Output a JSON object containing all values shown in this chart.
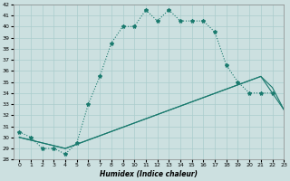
{
  "xlabel": "Humidex (Indice chaleur)",
  "bg_color": "#cce0e0",
  "grid_color": "#aacccc",
  "line_color": "#1a7a6e",
  "ylim": [
    28,
    42
  ],
  "xlim": [
    -0.5,
    23
  ],
  "yticks": [
    28,
    29,
    30,
    31,
    32,
    33,
    34,
    35,
    36,
    37,
    38,
    39,
    40,
    41,
    42
  ],
  "xticks": [
    0,
    1,
    2,
    3,
    4,
    5,
    6,
    7,
    8,
    9,
    10,
    11,
    12,
    13,
    14,
    15,
    16,
    17,
    18,
    19,
    20,
    21,
    22,
    23
  ],
  "line1_x": [
    0,
    1,
    2,
    3,
    4,
    5,
    6,
    7,
    8,
    9,
    10,
    11,
    12,
    13,
    14,
    15,
    16,
    17,
    18,
    19,
    20,
    21,
    22
  ],
  "line1_y": [
    30.5,
    30.0,
    29.0,
    29.0,
    28.5,
    29.5,
    33.0,
    35.5,
    38.5,
    40.0,
    40.0,
    41.5,
    40.5,
    41.5,
    40.5,
    40.5,
    40.5,
    39.5,
    36.5,
    35.0,
    34.0,
    34.0,
    34.0
  ],
  "line2_x": [
    0,
    4,
    21,
    22,
    23
  ],
  "line2_y": [
    30.0,
    29.0,
    35.5,
    34.5,
    32.5
  ],
  "line3_x": [
    0,
    4,
    21,
    22,
    23
  ],
  "line3_y": [
    30.0,
    29.0,
    35.5,
    34.0,
    32.5
  ]
}
